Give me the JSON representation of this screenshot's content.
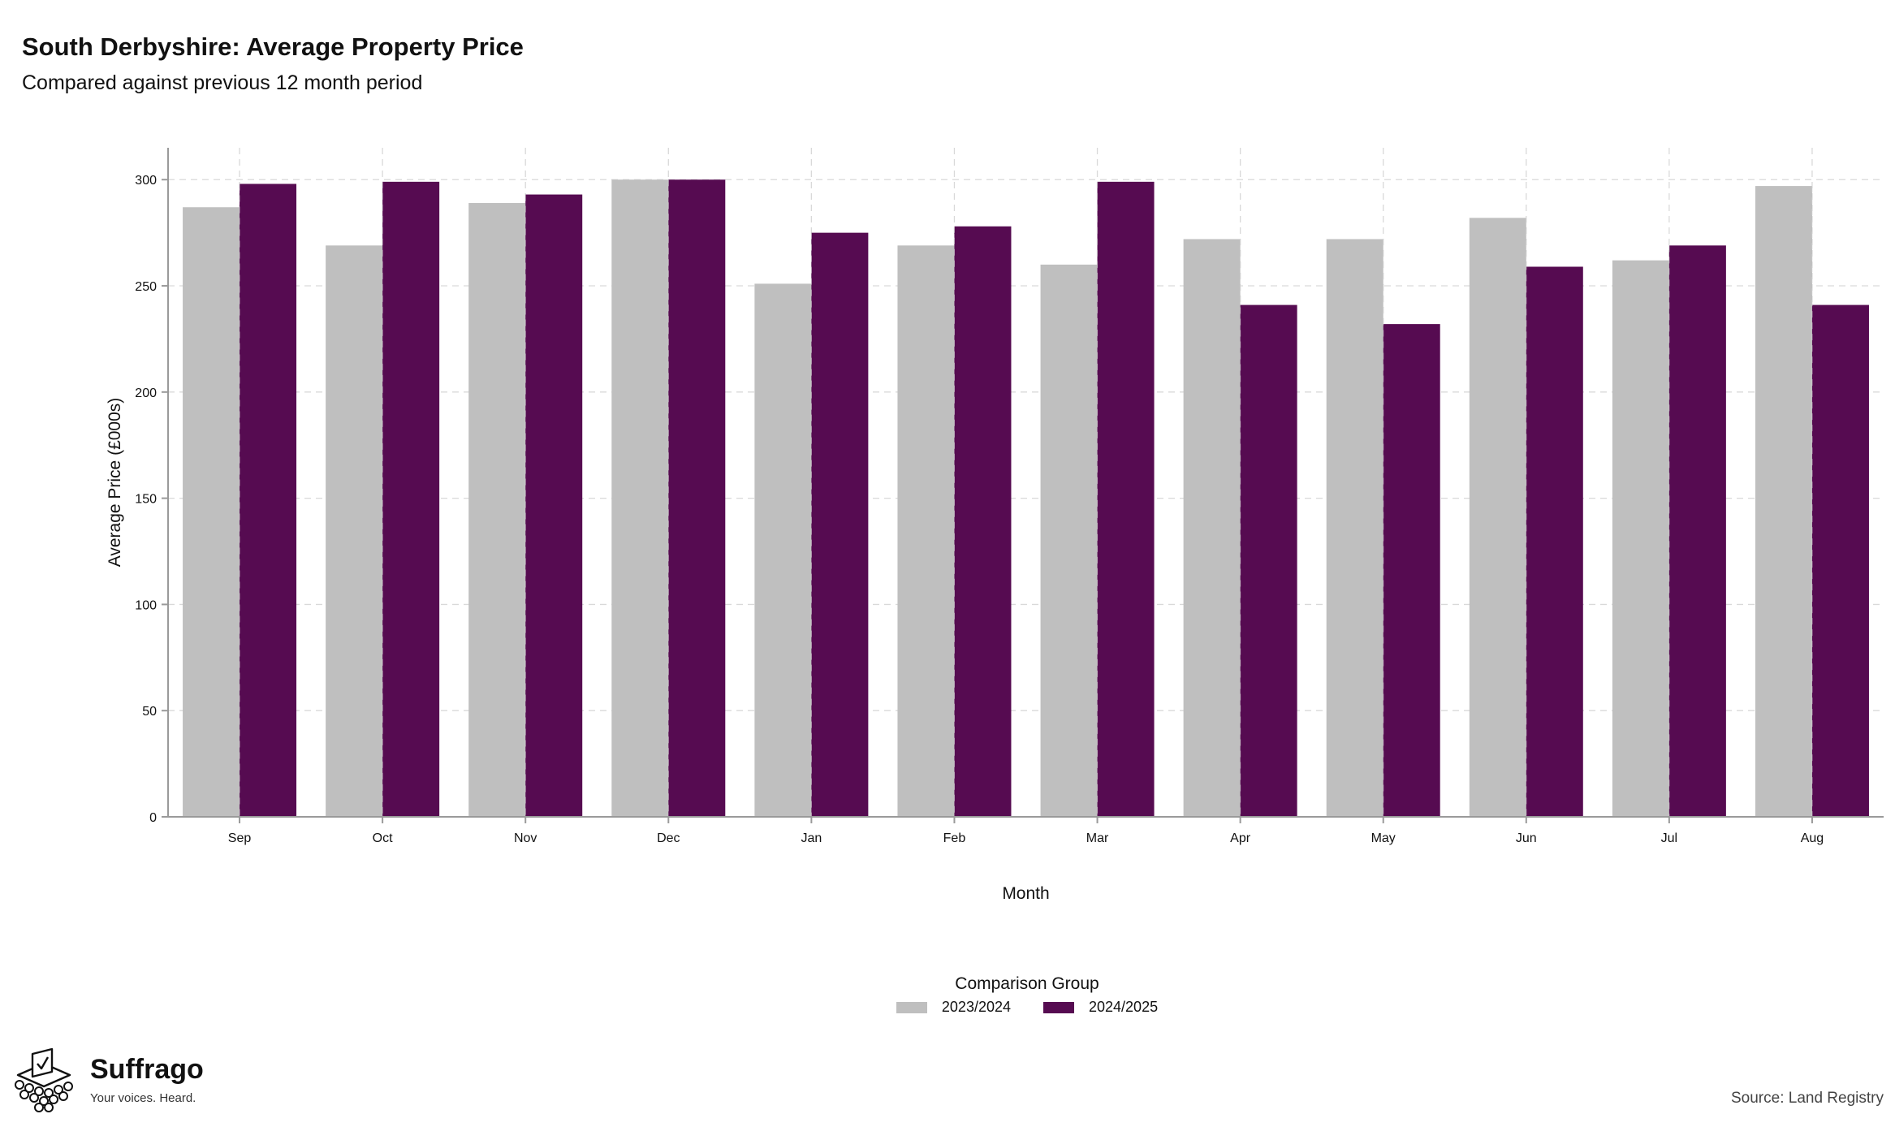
{
  "header": {
    "title": "South Derbyshire: Average Property Price",
    "subtitle": "Compared against previous 12 month period"
  },
  "chart_data": {
    "type": "bar",
    "title": "South Derbyshire: Average Property Price",
    "subtitle": "Compared against previous 12 month period",
    "xlabel": "Month",
    "ylabel": "Average Price (£000s)",
    "ylim": [
      0,
      315
    ],
    "yticks": [
      0,
      50,
      100,
      150,
      200,
      250,
      300
    ],
    "grid": true,
    "legend_title": "Comparison Group",
    "legend_position": "bottom",
    "categories": [
      "Sep",
      "Oct",
      "Nov",
      "Dec",
      "Jan",
      "Feb",
      "Mar",
      "Apr",
      "May",
      "Jun",
      "Jul",
      "Aug"
    ],
    "series": [
      {
        "name": "2023/2024",
        "color": "#bfbfbf",
        "values": [
          287,
          269,
          289,
          300,
          251,
          269,
          260,
          272,
          272,
          282,
          262,
          297
        ]
      },
      {
        "name": "2024/2025",
        "color": "#560b51",
        "values": [
          298,
          299,
          293,
          300,
          275,
          278,
          299,
          241,
          232,
          259,
          269,
          241
        ]
      }
    ]
  },
  "branding": {
    "name": "Suffrago",
    "tagline": "Your voices. Heard.",
    "logo_icon": "ballot-box-icon"
  },
  "footer": {
    "source": "Source: Land Registry"
  }
}
